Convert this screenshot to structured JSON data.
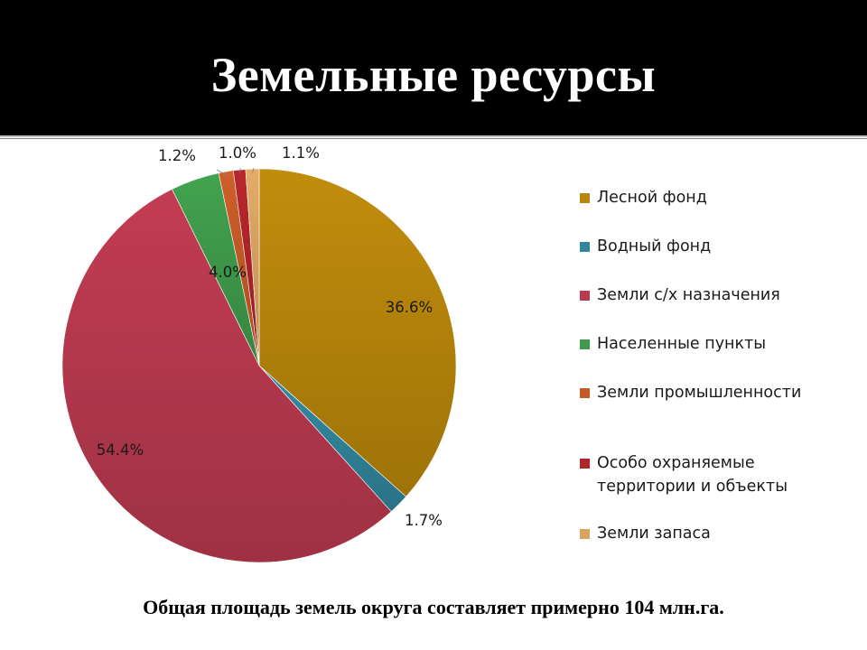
{
  "slide": {
    "title": "Земельные ресурсы",
    "footer": "Общая площадь земель округа составляет примерно 104 млн.га."
  },
  "chart_data": {
    "type": "pie",
    "legend_position": "right",
    "slices": [
      {
        "name": "Лесной фонд",
        "value": 36.6,
        "label": "36.6%",
        "color": "#B8860B"
      },
      {
        "name": "Водный фонд",
        "value": 1.7,
        "label": "1.7%",
        "color": "#31859C"
      },
      {
        "name": "Земли с/х назначения",
        "value": 54.4,
        "label": "54.4%",
        "color": "#B9394E"
      },
      {
        "name": "Населенные пункты",
        "value": 4.0,
        "label": "4.0%",
        "color": "#3F9B4A"
      },
      {
        "name": "Земли промышленности",
        "value": 1.2,
        "label": "1.2%",
        "color": "#C55A28"
      },
      {
        "name": "Особо охраняемые территории и объекты",
        "value": 1.0,
        "label": "1.0%",
        "color": "#B0242A"
      },
      {
        "name": "Земли запаса",
        "value": 1.1,
        "label": "1.1%",
        "color": "#D9A462"
      }
    ]
  }
}
